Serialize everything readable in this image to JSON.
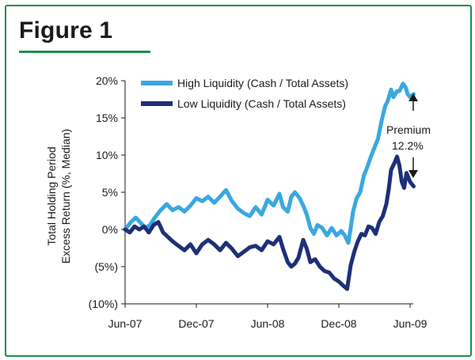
{
  "figure": {
    "title": "Figure 1"
  },
  "colors": {
    "accent": "#1b8f4d",
    "high": "#3aa8e0",
    "low": "#1f2f78"
  },
  "chart_data": {
    "type": "line",
    "title": "",
    "xlabel": "",
    "ylabel": [
      "Total Holding Period",
      "Excess Return (%, Median)"
    ],
    "xlim": [
      0,
      24
    ],
    "ylim": [
      -10,
      20
    ],
    "x_ticks": [
      {
        "x": 0,
        "label": "Jun-07"
      },
      {
        "x": 6,
        "label": "Dec-07"
      },
      {
        "x": 12,
        "label": "Jun-08"
      },
      {
        "x": 18,
        "label": "Dec-08"
      },
      {
        "x": 24,
        "label": "Jun-09"
      }
    ],
    "y_ticks": [
      {
        "y": 20,
        "label": "20%"
      },
      {
        "y": 15,
        "label": "15%"
      },
      {
        "y": 10,
        "label": "10%"
      },
      {
        "y": 5,
        "label": "5%"
      },
      {
        "y": 0,
        "label": "0%"
      },
      {
        "y": -5,
        "label": "(5%)"
      },
      {
        "y": -10,
        "label": "(10%)"
      }
    ],
    "series": [
      {
        "name": "High Liquidity (Cash / Total Assets)",
        "color": "#3aa8e0",
        "points": [
          [
            0,
            0
          ],
          [
            0.5,
            1.0
          ],
          [
            0.9,
            1.6
          ],
          [
            1.3,
            0.9
          ],
          [
            1.7,
            0.2
          ],
          [
            2.1,
            0.6
          ],
          [
            2.5,
            1.6
          ],
          [
            3.0,
            2.6
          ],
          [
            3.5,
            3.4
          ],
          [
            4.0,
            2.6
          ],
          [
            4.5,
            3.0
          ],
          [
            5.0,
            2.4
          ],
          [
            5.5,
            3.2
          ],
          [
            6.0,
            4.2
          ],
          [
            6.5,
            3.8
          ],
          [
            7.0,
            4.4
          ],
          [
            7.5,
            3.6
          ],
          [
            8.0,
            4.4
          ],
          [
            8.5,
            5.3
          ],
          [
            9.0,
            3.8
          ],
          [
            9.5,
            2.8
          ],
          [
            10.0,
            2.2
          ],
          [
            10.5,
            1.8
          ],
          [
            11.0,
            3.0
          ],
          [
            11.5,
            2.0
          ],
          [
            12.0,
            4.0
          ],
          [
            12.5,
            3.2
          ],
          [
            13.0,
            4.8
          ],
          [
            13.3,
            3.0
          ],
          [
            13.7,
            2.4
          ],
          [
            14.0,
            4.4
          ],
          [
            14.3,
            5.0
          ],
          [
            14.7,
            4.2
          ],
          [
            15.0,
            3.2
          ],
          [
            15.3,
            2.0
          ],
          [
            15.6,
            0.2
          ],
          [
            15.9,
            -0.6
          ],
          [
            16.2,
            0.6
          ],
          [
            16.6,
            0.2
          ],
          [
            17.0,
            -0.8
          ],
          [
            17.4,
            0.2
          ],
          [
            17.8,
            -0.8
          ],
          [
            18.2,
            -0.2
          ],
          [
            18.5,
            -0.8
          ],
          [
            18.8,
            -1.8
          ],
          [
            19.0,
            0.2
          ],
          [
            19.2,
            2.4
          ],
          [
            19.5,
            4.2
          ],
          [
            19.8,
            5.0
          ],
          [
            20.1,
            7.2
          ],
          [
            20.4,
            8.4
          ],
          [
            20.7,
            9.8
          ],
          [
            21.0,
            11.0
          ],
          [
            21.3,
            12.2
          ],
          [
            21.6,
            14.6
          ],
          [
            21.9,
            16.6
          ],
          [
            22.1,
            17.2
          ],
          [
            22.4,
            18.8
          ],
          [
            22.6,
            17.8
          ],
          [
            22.9,
            18.6
          ],
          [
            23.1,
            18.6
          ],
          [
            23.4,
            19.6
          ],
          [
            23.6,
            19.2
          ],
          [
            23.8,
            18.2
          ],
          [
            24.0,
            17.8
          ],
          [
            24.3,
            18.2
          ]
        ]
      },
      {
        "name": "Low Liquidity (Cash / Total Assets)",
        "color": "#1f2f78",
        "points": [
          [
            0,
            0
          ],
          [
            0.4,
            -0.4
          ],
          [
            0.8,
            0.4
          ],
          [
            1.2,
            0.0
          ],
          [
            1.6,
            0.4
          ],
          [
            2.0,
            -0.4
          ],
          [
            2.4,
            0.6
          ],
          [
            2.8,
            1.0
          ],
          [
            3.2,
            -0.4
          ],
          [
            3.6,
            -1.0
          ],
          [
            4.0,
            -1.6
          ],
          [
            4.5,
            -2.2
          ],
          [
            5.0,
            -2.8
          ],
          [
            5.5,
            -2.0
          ],
          [
            6.0,
            -3.2
          ],
          [
            6.5,
            -2.0
          ],
          [
            7.0,
            -1.4
          ],
          [
            7.5,
            -2.0
          ],
          [
            8.0,
            -2.8
          ],
          [
            8.5,
            -1.8
          ],
          [
            9.0,
            -2.6
          ],
          [
            9.5,
            -3.6
          ],
          [
            10.0,
            -3.0
          ],
          [
            10.5,
            -2.4
          ],
          [
            11.0,
            -2.2
          ],
          [
            11.5,
            -2.8
          ],
          [
            12.0,
            -1.6
          ],
          [
            12.5,
            -2.0
          ],
          [
            13.0,
            -1.0
          ],
          [
            13.3,
            -2.6
          ],
          [
            13.7,
            -4.4
          ],
          [
            14.0,
            -5.0
          ],
          [
            14.3,
            -4.6
          ],
          [
            14.6,
            -3.8
          ],
          [
            15.0,
            -1.4
          ],
          [
            15.3,
            -2.6
          ],
          [
            15.6,
            -4.4
          ],
          [
            16.0,
            -4.0
          ],
          [
            16.4,
            -5.0
          ],
          [
            16.8,
            -5.6
          ],
          [
            17.2,
            -5.8
          ],
          [
            17.6,
            -6.6
          ],
          [
            18.0,
            -7.0
          ],
          [
            18.4,
            -7.6
          ],
          [
            18.7,
            -8.0
          ],
          [
            19.0,
            -4.8
          ],
          [
            19.3,
            -3.0
          ],
          [
            19.6,
            -1.6
          ],
          [
            19.9,
            -0.6
          ],
          [
            20.2,
            -0.8
          ],
          [
            20.5,
            0.4
          ],
          [
            20.8,
            0.2
          ],
          [
            21.1,
            -0.6
          ],
          [
            21.4,
            1.0
          ],
          [
            21.7,
            1.8
          ],
          [
            22.0,
            3.4
          ],
          [
            22.2,
            5.4
          ],
          [
            22.4,
            8.0
          ],
          [
            22.7,
            9.0
          ],
          [
            22.9,
            9.8
          ],
          [
            23.1,
            8.6
          ],
          [
            23.3,
            6.4
          ],
          [
            23.5,
            5.6
          ],
          [
            23.7,
            7.6
          ],
          [
            24.0,
            6.4
          ],
          [
            24.3,
            5.8
          ]
        ]
      }
    ],
    "legend": {
      "position": "top-left"
    },
    "annotation": {
      "line1": "Premium",
      "line2": "12.2%"
    }
  }
}
